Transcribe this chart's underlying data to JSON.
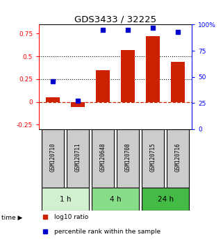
{
  "title": "GDS3433 / 32225",
  "samples": [
    "GSM120710",
    "GSM120711",
    "GSM120648",
    "GSM120708",
    "GSM120715",
    "GSM120716"
  ],
  "groups": [
    {
      "label": "1 h",
      "indices": [
        0,
        1
      ],
      "color": "#d0f0d0"
    },
    {
      "label": "4 h",
      "indices": [
        2,
        3
      ],
      "color": "#88dd88"
    },
    {
      "label": "24 h",
      "indices": [
        4,
        5
      ],
      "color": "#44bb44"
    }
  ],
  "log10_ratio": [
    0.05,
    -0.06,
    0.35,
    0.57,
    0.72,
    0.44
  ],
  "percentile_rank": [
    46,
    27,
    95,
    95,
    97,
    93
  ],
  "ylim_left": [
    -0.3,
    0.85
  ],
  "ylim_right": [
    0,
    100
  ],
  "left_yticks": [
    -0.25,
    0.0,
    0.25,
    0.5,
    0.75
  ],
  "right_yticks": [
    0,
    25,
    50,
    75,
    100
  ],
  "hlines_dotted": [
    0.25,
    0.5
  ],
  "zero_line": 0.0,
  "bar_color": "#cc2200",
  "dot_color": "#0000cc",
  "zero_line_color": "#cc2200",
  "hline_color": "#000000",
  "sample_box_color": "#cccccc",
  "legend_labels": [
    "log10 ratio",
    "percentile rank within the sample"
  ],
  "time_label": "time"
}
